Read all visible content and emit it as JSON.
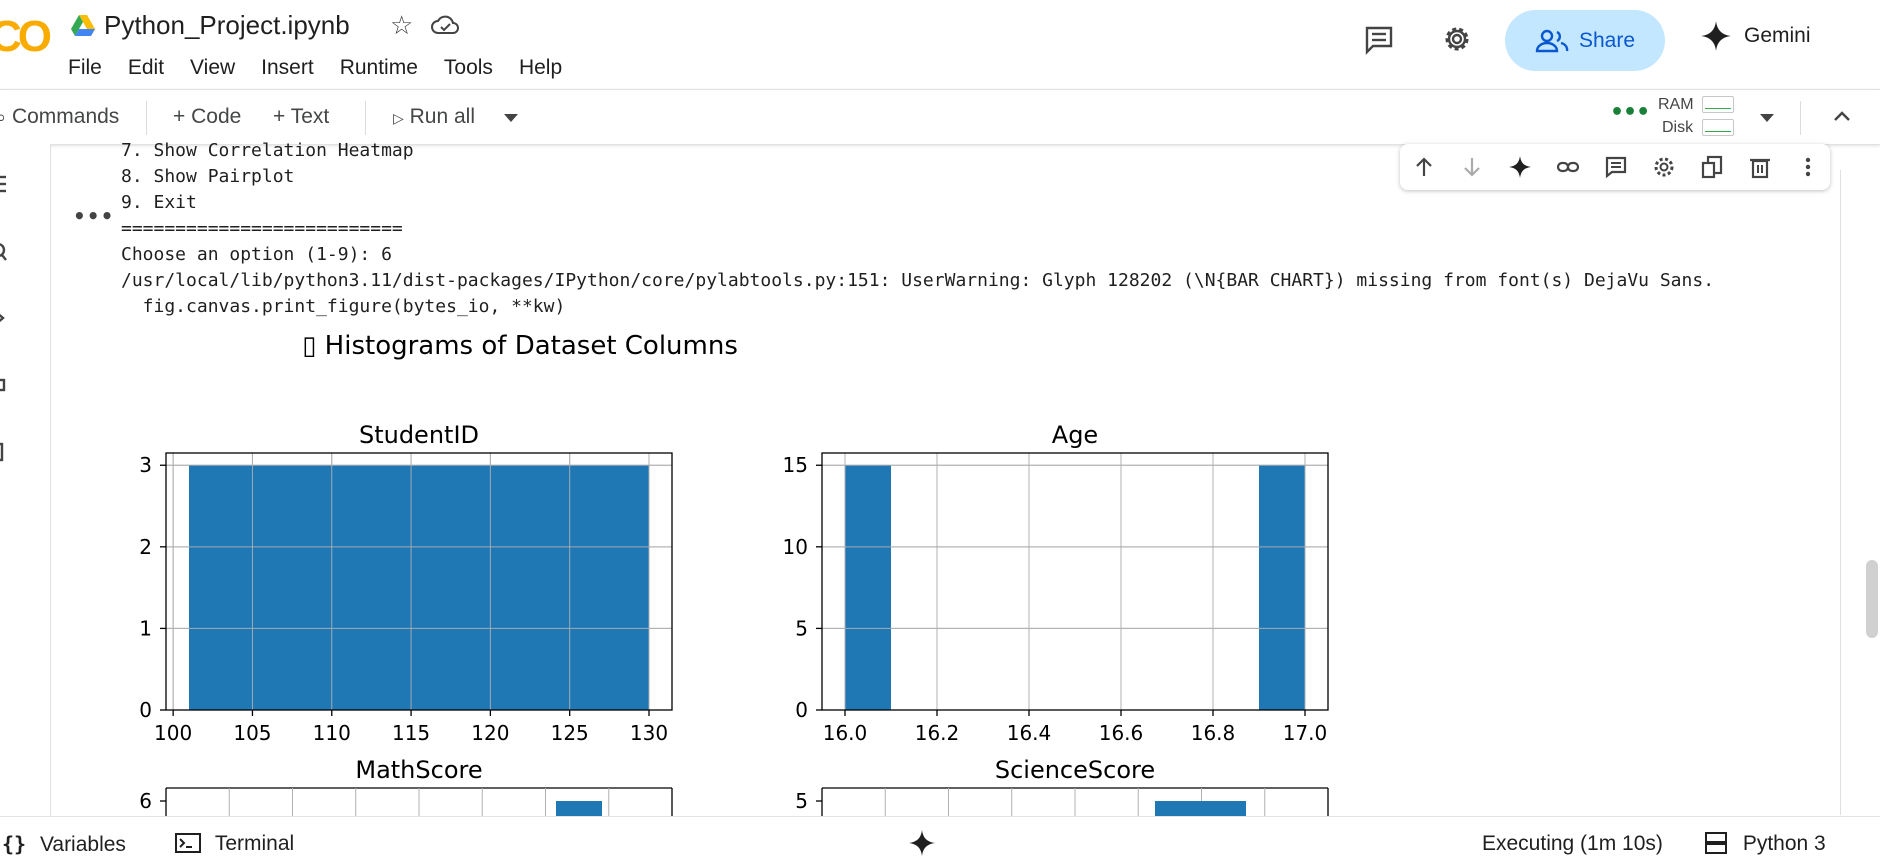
{
  "header": {
    "logo_text": "CO",
    "notebook_title": "Python_Project.ipynb",
    "menu": [
      "File",
      "Edit",
      "View",
      "Insert",
      "Runtime",
      "Tools",
      "Help"
    ],
    "share_label": "Share",
    "gemini_label": "Gemini"
  },
  "toolbar": {
    "commands_label": "Commands",
    "add_code_label": "+ Code",
    "add_text_label": "+ Text",
    "run_all_label": "Run all",
    "ram_label": "RAM",
    "disk_label": "Disk"
  },
  "output": {
    "lines": [
      "7. Show Correlation Heatmap",
      "8. Show Pairplot",
      "9. Exit",
      "==========================",
      "Choose an option (1-9): 6",
      "/usr/local/lib/python3.11/dist-packages/IPython/core/pylabtools.py:151: UserWarning: Glyph 128202 (\\N{BAR CHART}) missing from font(s) DejaVu Sans.",
      "  fig.canvas.print_figure(bytes_io, **kw)"
    ]
  },
  "chart_data": {
    "type": "bar",
    "title": "▯ Histograms of Dataset Columns",
    "bar_color": "#1f77b4",
    "subplots": [
      {
        "title": "StudentID",
        "x_ticks": [
          "100",
          "105",
          "110",
          "115",
          "120",
          "125",
          "130"
        ],
        "y_ticks": [
          "0",
          "1",
          "2",
          "3"
        ],
        "xlim": [
          99.55,
          131.45
        ],
        "ylim": [
          0,
          3.15
        ],
        "bins": [
          [
            101,
            103.9,
            3
          ],
          [
            103.9,
            106.8,
            3
          ],
          [
            106.8,
            109.7,
            3
          ],
          [
            109.7,
            112.6,
            3
          ],
          [
            112.6,
            115.5,
            3
          ],
          [
            115.5,
            118.4,
            3
          ],
          [
            118.4,
            121.3,
            3
          ],
          [
            121.3,
            124.2,
            3
          ],
          [
            124.2,
            127.1,
            3
          ],
          [
            127.1,
            130,
            3
          ]
        ]
      },
      {
        "title": "Age",
        "x_ticks": [
          "16.0",
          "16.2",
          "16.4",
          "16.6",
          "16.8",
          "17.0"
        ],
        "y_ticks": [
          "0",
          "5",
          "10",
          "15"
        ],
        "xlim": [
          15.95,
          17.05
        ],
        "ylim": [
          0,
          15.75
        ],
        "bins": [
          [
            16.0,
            16.1,
            15
          ],
          [
            16.9,
            17.0,
            15
          ]
        ]
      },
      {
        "title": "MathScore",
        "y_ticks": [
          "6"
        ],
        "partial": true
      },
      {
        "title": "ScienceScore",
        "y_ticks": [
          "5"
        ],
        "partial": true
      }
    ]
  },
  "footer": {
    "variables_label": "Variables",
    "terminal_label": "Terminal",
    "status_label": "Executing (1m 10s)",
    "runtime_label": "Python 3"
  }
}
